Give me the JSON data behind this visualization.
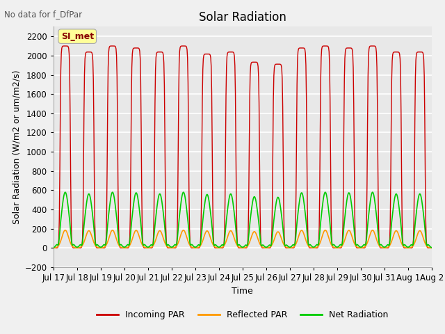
{
  "title": "Solar Radiation",
  "subtitle": "No data for f_DfPar",
  "xlabel": "Time",
  "ylabel": "Solar Radiation (W/m2 or um/m2/s)",
  "ylim": [
    -200,
    2300
  ],
  "yticks": [
    -200,
    0,
    200,
    400,
    600,
    800,
    1000,
    1200,
    1400,
    1600,
    1800,
    2000,
    2200
  ],
  "num_days": 16,
  "incoming_peak": 2100,
  "reflected_peak": 185,
  "net_peak": 580,
  "net_min": -80,
  "legend_labels": [
    "Incoming PAR",
    "Reflected PAR",
    "Net Radiation"
  ],
  "line_colors": [
    "#cc0000",
    "#ff9900",
    "#00cc00"
  ],
  "plot_area_bg": "#e8e8e8",
  "fig_bg": "#f0f0f0",
  "grid_color": "#ffffff",
  "annotation_box_color": "#ffff99",
  "annotation_text": "SI_met",
  "annotation_text_color": "#880000",
  "title_fontsize": 12,
  "label_fontsize": 9,
  "tick_fontsize": 8.5,
  "day_variation": [
    1.0,
    0.97,
    1.0,
    0.99,
    0.97,
    1.0,
    0.96,
    0.97,
    0.92,
    0.91,
    0.99,
    1.0,
    0.99,
    1.0,
    0.97,
    0.97
  ]
}
